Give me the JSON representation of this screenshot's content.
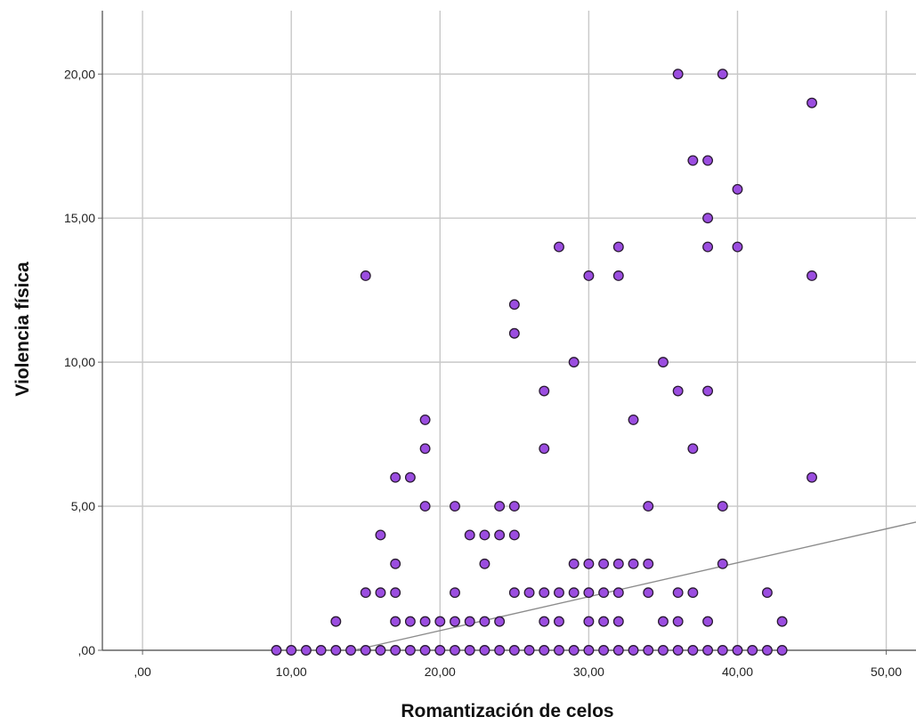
{
  "chart_data": {
    "type": "scatter",
    "xlabel": "Romantización de celos",
    "ylabel": "Violencia física",
    "xlim": [
      -2.7,
      52
    ],
    "ylim": [
      0,
      22.2
    ],
    "grid": true,
    "x_ticks": [
      ",00",
      "10,00",
      "20,00",
      "30,00",
      "40,00",
      "50,00"
    ],
    "y_ticks": [
      ",00",
      "5,00",
      "10,00",
      "15,00",
      "20,00"
    ],
    "x_tick_values": [
      0,
      10,
      20,
      30,
      40,
      50
    ],
    "y_tick_values": [
      0,
      5,
      10,
      15,
      20
    ],
    "point_color": "#9b4de0",
    "point_edge_color": "#2a1a33",
    "fit_line_color": "#8c8c8c",
    "fit_line": {
      "x": [
        14.2,
        52
      ],
      "y": [
        0,
        4.45
      ]
    },
    "points": [
      [
        9,
        0
      ],
      [
        10,
        0
      ],
      [
        11,
        0
      ],
      [
        12,
        0
      ],
      [
        13,
        0
      ],
      [
        14,
        0
      ],
      [
        15,
        0
      ],
      [
        16,
        0
      ],
      [
        17,
        0
      ],
      [
        18,
        0
      ],
      [
        19,
        0
      ],
      [
        20,
        0
      ],
      [
        21,
        0
      ],
      [
        22,
        0
      ],
      [
        23,
        0
      ],
      [
        24,
        0
      ],
      [
        25,
        0
      ],
      [
        26,
        0
      ],
      [
        27,
        0
      ],
      [
        28,
        0
      ],
      [
        29,
        0
      ],
      [
        30,
        0
      ],
      [
        31,
        0
      ],
      [
        32,
        0
      ],
      [
        33,
        0
      ],
      [
        34,
        0
      ],
      [
        35,
        0
      ],
      [
        36,
        0
      ],
      [
        37,
        0
      ],
      [
        38,
        0
      ],
      [
        39,
        0
      ],
      [
        40,
        0
      ],
      [
        41,
        0
      ],
      [
        42,
        0
      ],
      [
        43,
        0
      ],
      [
        13,
        1
      ],
      [
        17,
        1
      ],
      [
        18,
        1
      ],
      [
        19,
        1
      ],
      [
        20,
        1
      ],
      [
        21,
        1
      ],
      [
        22,
        1
      ],
      [
        23,
        1
      ],
      [
        24,
        1
      ],
      [
        27,
        1
      ],
      [
        28,
        1
      ],
      [
        30,
        1
      ],
      [
        31,
        1
      ],
      [
        32,
        1
      ],
      [
        35,
        1
      ],
      [
        36,
        1
      ],
      [
        38,
        1
      ],
      [
        43,
        1
      ],
      [
        15,
        2
      ],
      [
        16,
        2
      ],
      [
        17,
        2
      ],
      [
        21,
        2
      ],
      [
        25,
        2
      ],
      [
        26,
        2
      ],
      [
        27,
        2
      ],
      [
        28,
        2
      ],
      [
        29,
        2
      ],
      [
        30,
        2
      ],
      [
        31,
        2
      ],
      [
        32,
        2
      ],
      [
        34,
        2
      ],
      [
        36,
        2
      ],
      [
        37,
        2
      ],
      [
        42,
        2
      ],
      [
        17,
        3
      ],
      [
        23,
        3
      ],
      [
        29,
        3
      ],
      [
        30,
        3
      ],
      [
        31,
        3
      ],
      [
        32,
        3
      ],
      [
        33,
        3
      ],
      [
        34,
        3
      ],
      [
        39,
        3
      ],
      [
        16,
        4
      ],
      [
        22,
        4
      ],
      [
        23,
        4
      ],
      [
        24,
        4
      ],
      [
        25,
        4
      ],
      [
        19,
        5
      ],
      [
        21,
        5
      ],
      [
        24,
        5
      ],
      [
        25,
        5
      ],
      [
        34,
        5
      ],
      [
        39,
        5
      ],
      [
        17,
        6
      ],
      [
        18,
        6
      ],
      [
        45,
        6
      ],
      [
        19,
        7
      ],
      [
        27,
        7
      ],
      [
        37,
        7
      ],
      [
        19,
        8
      ],
      [
        33,
        8
      ],
      [
        27,
        9
      ],
      [
        36,
        9
      ],
      [
        38,
        9
      ],
      [
        29,
        10
      ],
      [
        35,
        10
      ],
      [
        25,
        11
      ],
      [
        25,
        12
      ],
      [
        15,
        13
      ],
      [
        30,
        13
      ],
      [
        32,
        13
      ],
      [
        45,
        13
      ],
      [
        28,
        14
      ],
      [
        32,
        14
      ],
      [
        38,
        14
      ],
      [
        40,
        14
      ],
      [
        38,
        15
      ],
      [
        40,
        16
      ],
      [
        37,
        17
      ],
      [
        38,
        17
      ],
      [
        45,
        19
      ],
      [
        36,
        20
      ],
      [
        39,
        20
      ]
    ]
  }
}
